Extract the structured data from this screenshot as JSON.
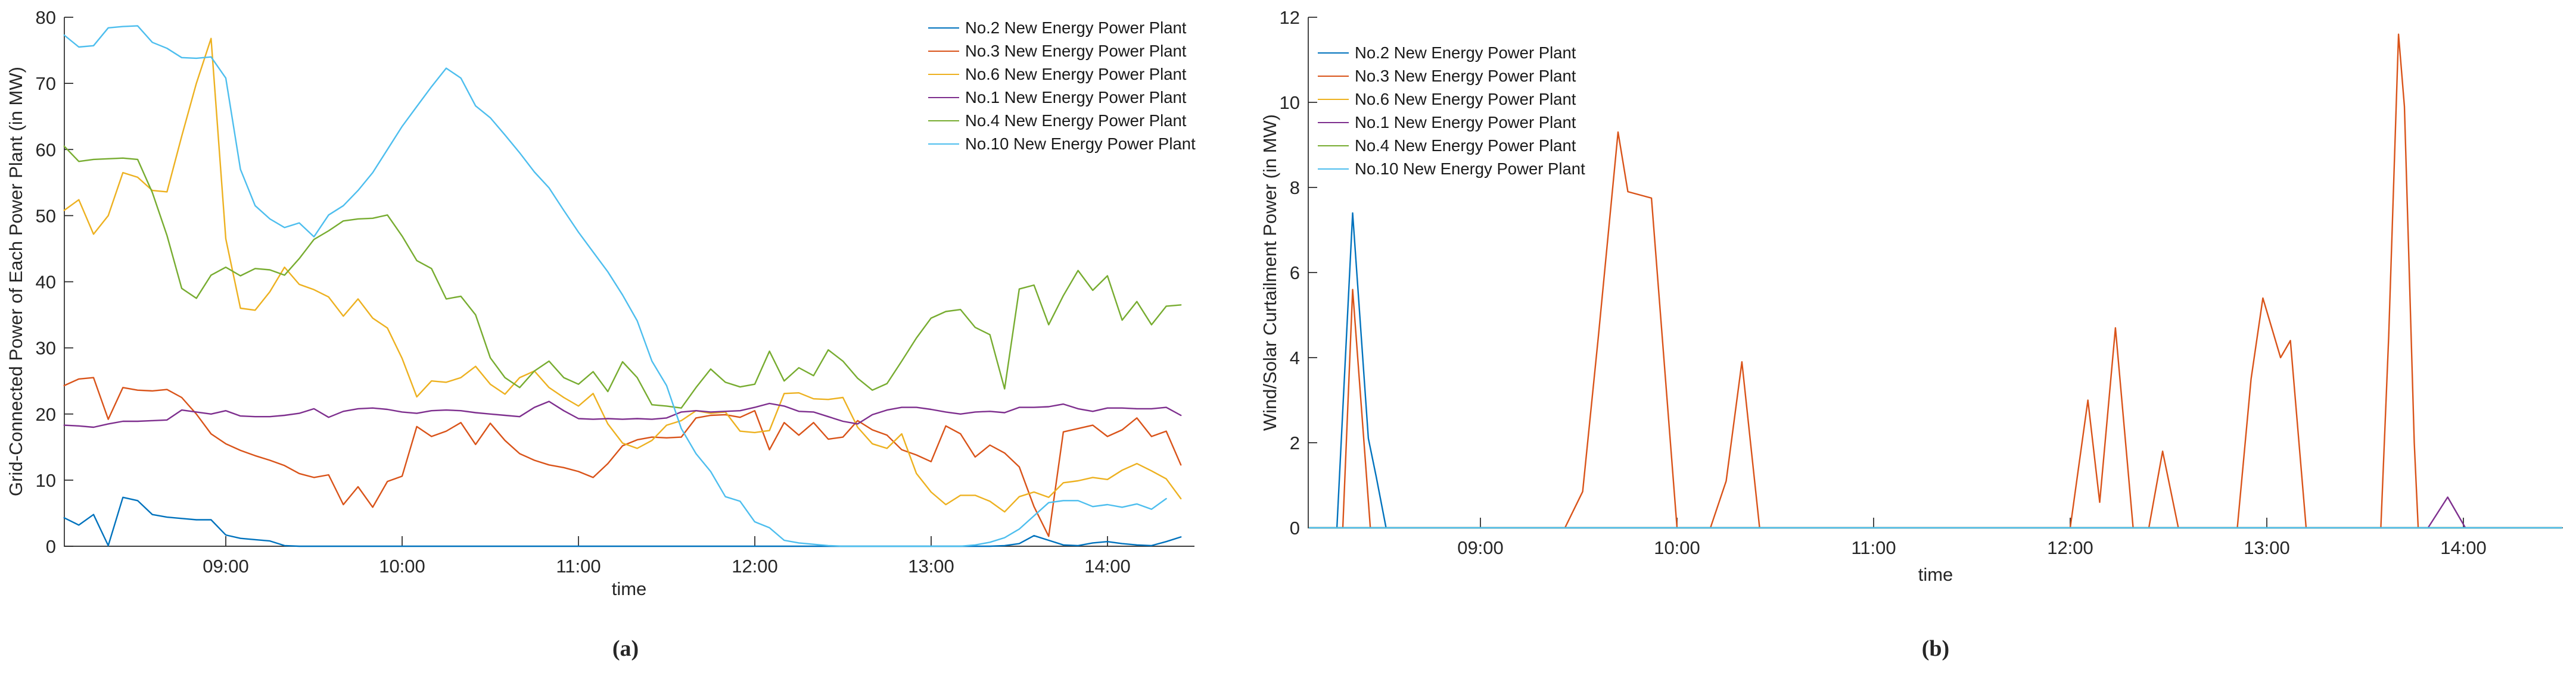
{
  "captions": {
    "a": "(a)",
    "b": "(b)"
  },
  "colors": {
    "blue": "#0072BD",
    "orange": "#D95319",
    "yellow": "#EDB120",
    "purple": "#7E2F8E",
    "green": "#77AC30",
    "cyan": "#4DBEEE",
    "axis": "#262626",
    "background": "#ffffff"
  },
  "chart_data": [
    {
      "id": "a",
      "type": "line",
      "title": "",
      "xlabel": "time",
      "ylabel": "Grid-Connected Power of Each Power Plant (in MW)",
      "ylim": [
        0,
        80
      ],
      "yticks": [
        0,
        10,
        20,
        30,
        40,
        50,
        60,
        70,
        80
      ],
      "xticks": [
        {
          "t": 9,
          "label": "09:00"
        },
        {
          "t": 10,
          "label": "10:00"
        },
        {
          "t": 11,
          "label": "11:00"
        },
        {
          "t": 12,
          "label": "12:00"
        },
        {
          "t": 13,
          "label": "13:00"
        },
        {
          "t": 14,
          "label": "14:00"
        }
      ],
      "xlim_hours": [
        8.083,
        14.494
      ],
      "grid": false,
      "legend_position": "top-right",
      "x_start": 8.0833,
      "x_step": 0.08333,
      "series": [
        {
          "name": "No.2 New Energy Power Plant",
          "color_key": "blue",
          "values": [
            4.3,
            3.2,
            4.8,
            0.1,
            7.4,
            6.9,
            4.8,
            4.4,
            4.2,
            4.0,
            4.0,
            1.7,
            1.2,
            1.0,
            0.8,
            0.1,
            0,
            0,
            0,
            0,
            0,
            0,
            0,
            0,
            0,
            0,
            0,
            0,
            0,
            0,
            0,
            0,
            0,
            0,
            0,
            0,
            0,
            0,
            0,
            0,
            0,
            0,
            0,
            0,
            0,
            0,
            0,
            0,
            0,
            0,
            0,
            0,
            0,
            0,
            0,
            0,
            0,
            0,
            0,
            0,
            0,
            0,
            0,
            0,
            0.1,
            0.4,
            1.6,
            0.9,
            0.2,
            0.1,
            0.5,
            0.7,
            0.4,
            0.2,
            0.1,
            0.7,
            1.4
          ]
        },
        {
          "name": "No.3 New Energy Power Plant",
          "color_key": "orange",
          "values": [
            24.3,
            25.3,
            25.5,
            19.2,
            24.0,
            23.6,
            23.5,
            23.7,
            22.5,
            20.0,
            17.0,
            15.5,
            14.5,
            13.7,
            13.0,
            12.2,
            11.0,
            10.4,
            10.8,
            6.3,
            9.0,
            5.9,
            9.8,
            10.6,
            18.1,
            16.6,
            17.4,
            18.7,
            15.4,
            18.6,
            16.0,
            14.0,
            13.0,
            12.3,
            11.9,
            11.3,
            10.4,
            12.5,
            15.2,
            16.1,
            16.5,
            16.4,
            16.5,
            19.4,
            19.8,
            19.9,
            19.5,
            20.5,
            14.6,
            18.7,
            16.8,
            18.7,
            16.2,
            16.5,
            19.0,
            17.6,
            16.8,
            14.6,
            13.8,
            12.8,
            18.2,
            17.0,
            13.5,
            15.3,
            14.1,
            12.0,
            6.0,
            1.5,
            17.3,
            17.8,
            18.3,
            16.6,
            17.6,
            19.4,
            16.6,
            17.4,
            12.3
          ]
        },
        {
          "name": "No.6 New Energy Power Plant",
          "color_key": "yellow",
          "values": [
            50.8,
            52.4,
            47.2,
            50.0,
            56.5,
            55.8,
            53.8,
            53.6,
            62.0,
            70.0,
            76.8,
            46.5,
            36.0,
            35.7,
            38.5,
            42.2,
            39.6,
            38.8,
            37.7,
            34.8,
            37.4,
            34.5,
            33.0,
            28.4,
            22.6,
            25.0,
            24.8,
            25.5,
            27.2,
            24.5,
            23.0,
            25.5,
            26.5,
            24.0,
            22.5,
            21.2,
            23.1,
            18.5,
            15.6,
            14.8,
            16.0,
            18.3,
            19.0,
            20.5,
            20.1,
            20.3,
            17.4,
            17.2,
            17.5,
            23.1,
            23.2,
            22.3,
            22.2,
            22.5,
            18.0,
            15.5,
            14.8,
            17.0,
            11.0,
            8.2,
            6.3,
            7.7,
            7.7,
            6.8,
            5.2,
            7.5,
            8.2,
            7.4,
            9.6,
            9.9,
            10.4,
            10.1,
            11.5,
            12.5,
            11.4,
            10.2,
            7.2
          ]
        },
        {
          "name": "No.1 New Energy Power Plant",
          "color_key": "purple",
          "values": [
            18.3,
            18.2,
            18.0,
            18.5,
            18.9,
            18.9,
            19.0,
            19.1,
            20.6,
            20.3,
            20.0,
            20.5,
            19.7,
            19.6,
            19.6,
            19.8,
            20.1,
            20.8,
            19.5,
            20.4,
            20.8,
            20.9,
            20.7,
            20.3,
            20.1,
            20.5,
            20.6,
            20.5,
            20.2,
            20.0,
            19.8,
            19.6,
            21.0,
            21.9,
            20.5,
            19.3,
            19.2,
            19.3,
            19.2,
            19.3,
            19.2,
            19.4,
            20.3,
            20.5,
            20.3,
            20.4,
            20.5,
            21.0,
            21.6,
            21.2,
            20.4,
            20.3,
            19.6,
            18.9,
            18.5,
            19.9,
            20.6,
            21.0,
            21.0,
            20.7,
            20.3,
            20.0,
            20.3,
            20.4,
            20.2,
            21.0,
            21.0,
            21.1,
            21.5,
            20.8,
            20.4,
            20.9,
            20.9,
            20.8,
            20.8,
            21.0,
            19.8
          ]
        },
        {
          "name": "No.4 New Energy Power Plant",
          "color_key": "green",
          "values": [
            60.5,
            58.2,
            58.5,
            58.6,
            58.7,
            58.5,
            53.5,
            47.0,
            39.0,
            37.5,
            41.0,
            42.2,
            40.9,
            42.0,
            41.8,
            41.0,
            43.5,
            46.4,
            47.7,
            49.2,
            49.5,
            49.6,
            50.1,
            46.9,
            43.2,
            42.0,
            37.4,
            37.8,
            35.0,
            28.5,
            25.5,
            24.0,
            26.5,
            28.0,
            25.5,
            24.5,
            26.4,
            23.4,
            27.9,
            25.5,
            21.4,
            21.2,
            20.9,
            24.0,
            26.8,
            24.8,
            24.1,
            24.5,
            29.5,
            25.0,
            27.0,
            25.8,
            29.7,
            28.0,
            25.4,
            23.6,
            24.6,
            28.0,
            31.5,
            34.5,
            35.5,
            35.8,
            33.1,
            32.0,
            23.8,
            38.9,
            39.5,
            33.5,
            37.9,
            41.7,
            38.7,
            40.9,
            34.2,
            37.0,
            33.5,
            36.3,
            36.5
          ]
        },
        {
          "name": "No.10 New Energy Power Plant",
          "color_key": "cyan",
          "values": [
            77.3,
            75.5,
            75.7,
            78.4,
            78.6,
            78.7,
            76.2,
            75.3,
            73.9,
            73.8,
            74.0,
            70.8,
            57.0,
            51.5,
            49.5,
            48.2,
            48.9,
            46.8,
            50.1,
            51.5,
            53.8,
            56.5,
            60.0,
            63.5,
            66.5,
            69.5,
            72.3,
            70.8,
            66.6,
            64.8,
            62.2,
            59.5,
            56.6,
            54.2,
            50.8,
            47.5,
            44.5,
            41.5,
            38.0,
            34.1,
            28.0,
            24.3,
            17.8,
            14.0,
            11.3,
            7.5,
            6.8,
            3.7,
            2.8,
            0.9,
            0.5,
            0.3,
            0.1,
            0,
            0,
            0,
            0,
            0,
            0,
            0,
            0,
            0,
            0.2,
            0.6,
            1.3,
            2.6,
            4.6,
            6.6,
            6.9,
            6.9,
            6.0,
            6.3,
            5.9,
            6.4,
            5.6,
            7.2
          ]
        }
      ]
    },
    {
      "id": "b",
      "type": "line",
      "title": "",
      "xlabel": "time",
      "ylabel": "Wind/Solar Curtailment Power (in MW)",
      "ylim": [
        0,
        12
      ],
      "yticks": [
        0,
        2,
        4,
        6,
        8,
        10,
        12
      ],
      "xticks": [
        {
          "t": 9,
          "label": "09:00"
        },
        {
          "t": 10,
          "label": "10:00"
        },
        {
          "t": 11,
          "label": "11:00"
        },
        {
          "t": 12,
          "label": "12:00"
        },
        {
          "t": 13,
          "label": "13:00"
        },
        {
          "t": 14,
          "label": "14:00"
        }
      ],
      "xlim_hours": [
        8.124,
        14.506
      ],
      "grid": false,
      "legend_position": "top-left",
      "series": [
        {
          "name": "No.2 New Energy Power Plant",
          "color_key": "blue",
          "points": [
            [
              8.13,
              0
            ],
            [
              8.27,
              0
            ],
            [
              8.35,
              7.4
            ],
            [
              8.43,
              2.1
            ],
            [
              8.47,
              1.2
            ],
            [
              8.52,
              0
            ],
            [
              14.5,
              0
            ]
          ]
        },
        {
          "name": "No.3 New Energy Power Plant",
          "color_key": "orange",
          "points": [
            [
              8.13,
              0
            ],
            [
              8.3,
              0
            ],
            [
              8.35,
              5.6
            ],
            [
              8.44,
              0
            ],
            [
              9.43,
              0
            ],
            [
              9.52,
              0.85
            ],
            [
              9.6,
              4.5
            ],
            [
              9.7,
              9.3
            ],
            [
              9.75,
              7.9
            ],
            [
              9.87,
              7.75
            ],
            [
              10.0,
              0
            ],
            [
              10.17,
              0
            ],
            [
              10.25,
              1.1
            ],
            [
              10.33,
              3.9
            ],
            [
              10.42,
              0
            ],
            [
              12.0,
              0
            ],
            [
              12.09,
              3.0
            ],
            [
              12.15,
              0.6
            ],
            [
              12.23,
              4.7
            ],
            [
              12.32,
              0
            ],
            [
              12.4,
              0
            ],
            [
              12.47,
              1.8
            ],
            [
              12.55,
              0
            ],
            [
              12.85,
              0
            ],
            [
              12.92,
              3.5
            ],
            [
              12.98,
              5.4
            ],
            [
              13.07,
              4.0
            ],
            [
              13.12,
              4.4
            ],
            [
              13.2,
              0
            ],
            [
              13.58,
              0
            ],
            [
              13.62,
              4.5
            ],
            [
              13.67,
              11.6
            ],
            [
              13.7,
              9.9
            ],
            [
              13.75,
              2.0
            ],
            [
              13.77,
              0
            ],
            [
              14.5,
              0
            ]
          ]
        },
        {
          "name": "No.6 New Energy Power Plant",
          "color_key": "yellow",
          "points": [
            [
              8.13,
              0
            ],
            [
              14.5,
              0
            ]
          ]
        },
        {
          "name": "No.1 New Energy Power Plant",
          "color_key": "purple",
          "points": [
            [
              8.13,
              0
            ],
            [
              13.82,
              0
            ],
            [
              13.92,
              0.72
            ],
            [
              14.01,
              0
            ],
            [
              14.5,
              0
            ]
          ]
        },
        {
          "name": "No.4 New Energy Power Plant",
          "color_key": "green",
          "points": [
            [
              8.13,
              0
            ],
            [
              14.5,
              0
            ]
          ]
        },
        {
          "name": "No.10 New Energy Power Plant",
          "color_key": "cyan",
          "points": [
            [
              8.13,
              0
            ],
            [
              14.5,
              0
            ]
          ]
        }
      ]
    }
  ]
}
